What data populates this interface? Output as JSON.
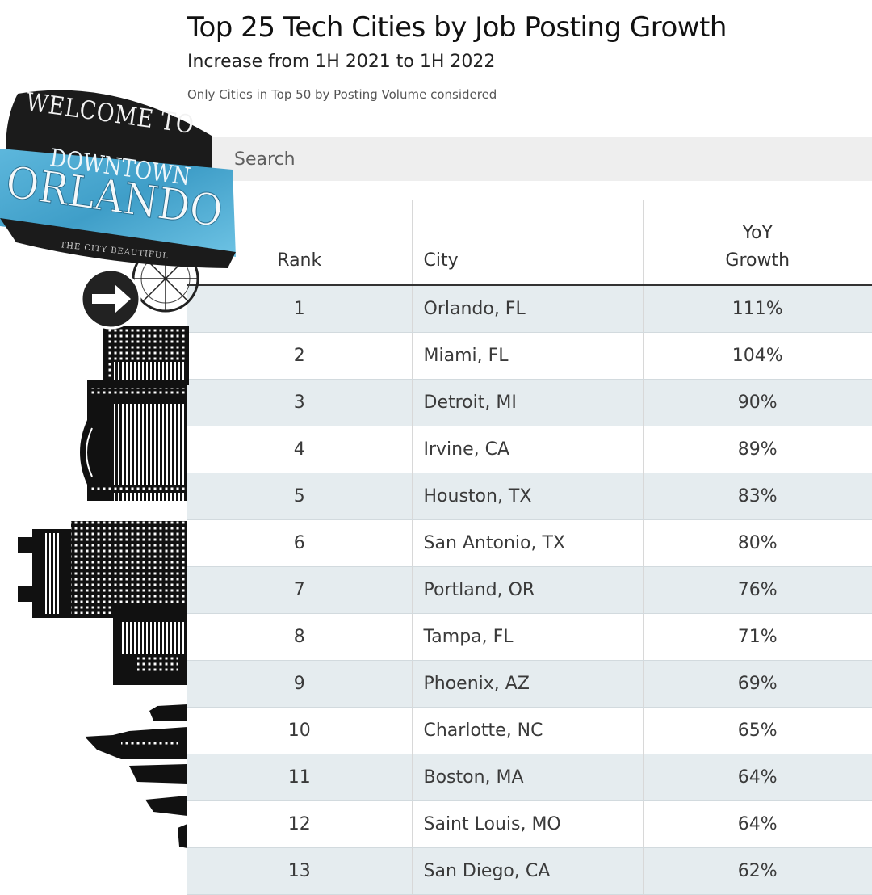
{
  "header": {
    "title": "Top 25 Tech Cities by Job Posting Growth",
    "subtitle": "Increase from 1H 2021 to 1H 2022",
    "note": "Only Cities in Top 50 by Posting Volume considered"
  },
  "search": {
    "placeholder": "Search"
  },
  "table": {
    "headers": {
      "rank": "Rank",
      "city": "City",
      "growth_line1": "YoY",
      "growth_line2": "Growth"
    },
    "rows": [
      {
        "rank": "1",
        "city": "Orlando, FL",
        "growth": "111%"
      },
      {
        "rank": "2",
        "city": "Miami, FL",
        "growth": "104%"
      },
      {
        "rank": "3",
        "city": "Detroit, MI",
        "growth": "90%"
      },
      {
        "rank": "4",
        "city": "Irvine, CA",
        "growth": "89%"
      },
      {
        "rank": "5",
        "city": "Houston, TX",
        "growth": "83%"
      },
      {
        "rank": "6",
        "city": "San Antonio, TX",
        "growth": "80%"
      },
      {
        "rank": "7",
        "city": "Portland, OR",
        "growth": "76%"
      },
      {
        "rank": "8",
        "city": "Tampa, FL",
        "growth": "71%"
      },
      {
        "rank": "9",
        "city": "Phoenix, AZ",
        "growth": "69%"
      },
      {
        "rank": "10",
        "city": "Charlotte, NC",
        "growth": "65%"
      },
      {
        "rank": "11",
        "city": "Boston, MA",
        "growth": "64%"
      },
      {
        "rank": "12",
        "city": "Saint Louis, MO",
        "growth": "64%"
      },
      {
        "rank": "13",
        "city": "San Diego, CA",
        "growth": "62%"
      }
    ]
  },
  "sign": {
    "line1": "Welcome to",
    "line2": "Downtown",
    "line3": "Orlando",
    "tagline": "The City Beautiful"
  },
  "icons": [
    "arrow-right-icon",
    "skyline-illustration",
    "ferris-wheel-icon"
  ],
  "colors": {
    "row_alt": "#e5ecef",
    "search_bg": "#eeeeee",
    "sign_blue": "#4aa8cf",
    "sign_dark": "#1b1b1b"
  }
}
